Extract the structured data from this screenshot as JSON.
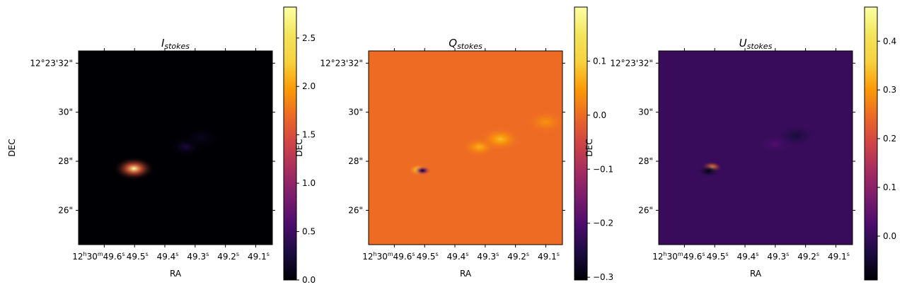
{
  "chart_data": [
    {
      "type": "heatmap",
      "title_main": "I",
      "title_sub": "stokes",
      "xlabel": "RA",
      "ylabel": "DEC",
      "x_ticks": [
        {
          "prefix": "12",
          "h": "h",
          "mid": "30",
          "m": "m",
          "tail": "49.6",
          "s": "s",
          "ra": 49.6
        },
        {
          "tail": "49.5",
          "s": "s",
          "ra": 49.5
        },
        {
          "tail": "49.4",
          "s": "s",
          "ra": 49.4
        },
        {
          "tail": "49.3",
          "s": "s",
          "ra": 49.3
        },
        {
          "tail": "49.2",
          "s": "s",
          "ra": 49.2
        },
        {
          "tail": "49.1",
          "s": "s",
          "ra": 49.1
        }
      ],
      "xlim": [
        49.685,
        49.045
      ],
      "y_ticks": [
        {
          "label": "12°23'32\"",
          "dec": 32
        },
        {
          "label": "30\"",
          "dec": 30
        },
        {
          "label": "28\"",
          "dec": 28
        },
        {
          "label": "26\"",
          "dec": 26
        }
      ],
      "ylim": [
        24.6,
        32.5
      ],
      "colormap": "inferno",
      "colorbar": {
        "range": [
          0.0,
          2.82
        ],
        "ticks": [
          {
            "label": "0.0",
            "value": 0.0
          },
          {
            "label": "0.5",
            "value": 0.5
          },
          {
            "label": "1.0",
            "value": 1.0
          },
          {
            "label": "1.5",
            "value": 1.5
          },
          {
            "label": "2.0",
            "value": 2.0
          },
          {
            "label": "2.5",
            "value": 2.5
          }
        ]
      },
      "background_value": 0.0,
      "features": [
        {
          "ra": 49.502,
          "dec": 27.7,
          "value": 2.8,
          "extent": 0.6
        },
        {
          "ra": 49.33,
          "dec": 28.6,
          "value": 0.25,
          "extent": 0.5
        },
        {
          "ra": 49.28,
          "dec": 28.95,
          "value": 0.12,
          "extent": 0.6
        }
      ]
    },
    {
      "type": "heatmap",
      "title_main": "Q",
      "title_sub": "stokes",
      "xlabel": "RA",
      "ylabel": "DEC",
      "x_ticks": [
        {
          "prefix": "12",
          "h": "h",
          "mid": "30",
          "m": "m",
          "tail": "49.6",
          "s": "s",
          "ra": 49.6
        },
        {
          "tail": "49.5",
          "s": "s",
          "ra": 49.5
        },
        {
          "tail": "49.4",
          "s": "s",
          "ra": 49.4
        },
        {
          "tail": "49.3",
          "s": "s",
          "ra": 49.3
        },
        {
          "tail": "49.2",
          "s": "s",
          "ra": 49.2
        },
        {
          "tail": "49.1",
          "s": "s",
          "ra": 49.1
        }
      ],
      "xlim": [
        49.685,
        49.045
      ],
      "y_ticks": [
        {
          "label": "12°23'32\"",
          "dec": 32
        },
        {
          "label": "30\"",
          "dec": 30
        },
        {
          "label": "28\"",
          "dec": 28
        },
        {
          "label": "26\"",
          "dec": 26
        }
      ],
      "ylim": [
        24.6,
        32.5
      ],
      "colormap": "inferno",
      "colorbar": {
        "range": [
          -0.305,
          0.2
        ],
        "ticks": [
          {
            "label": "−0.3",
            "value": -0.3
          },
          {
            "label": "−0.2",
            "value": -0.2
          },
          {
            "label": "−0.1",
            "value": -0.1
          },
          {
            "label": "0.0",
            "value": 0.0
          },
          {
            "label": "0.1",
            "value": 0.1
          }
        ]
      },
      "background_value": 0.0,
      "features": [
        {
          "ra": 49.52,
          "dec": 27.65,
          "value": 0.15,
          "extent": 0.3
        },
        {
          "ra": 49.507,
          "dec": 27.62,
          "value": -0.3,
          "extent": 0.25
        },
        {
          "ra": 49.32,
          "dec": 28.58,
          "value": 0.07,
          "extent": 0.5
        },
        {
          "ra": 49.25,
          "dec": 28.9,
          "value": 0.08,
          "extent": 0.6
        },
        {
          "ra": 49.1,
          "dec": 29.6,
          "value": 0.04,
          "extent": 0.6
        }
      ]
    },
    {
      "type": "heatmap",
      "title_main": "U",
      "title_sub": "stokes",
      "xlabel": "RA",
      "ylabel": "DEC",
      "x_ticks": [
        {
          "prefix": "12",
          "h": "h",
          "mid": "30",
          "m": "m",
          "tail": "49.6",
          "s": "s",
          "ra": 49.6
        },
        {
          "tail": "49.5",
          "s": "s",
          "ra": 49.5
        },
        {
          "tail": "49.4",
          "s": "s",
          "ra": 49.4
        },
        {
          "tail": "49.3",
          "s": "s",
          "ra": 49.3
        },
        {
          "tail": "49.2",
          "s": "s",
          "ra": 49.2
        },
        {
          "tail": "49.1",
          "s": "s",
          "ra": 49.1
        }
      ],
      "xlim": [
        49.685,
        49.045
      ],
      "y_ticks": [
        {
          "label": "12°23'32\"",
          "dec": 32
        },
        {
          "label": "30\"",
          "dec": 30
        },
        {
          "label": "28\"",
          "dec": 28
        },
        {
          "label": "26\"",
          "dec": 26
        }
      ],
      "ylim": [
        24.6,
        32.5
      ],
      "colormap": "inferno",
      "colorbar": {
        "range": [
          -0.09,
          0.47
        ],
        "ticks": [
          {
            "label": "0.0",
            "value": 0.0
          },
          {
            "label": "0.1",
            "value": 0.1
          },
          {
            "label": "0.2",
            "value": 0.2
          },
          {
            "label": "0.3",
            "value": 0.3
          },
          {
            "label": "0.4",
            "value": 0.4
          }
        ]
      },
      "background_value": 0.0,
      "features": [
        {
          "ra": 49.51,
          "dec": 27.75,
          "value": 0.45,
          "extent": 0.3
        },
        {
          "ra": 49.52,
          "dec": 27.6,
          "value": -0.08,
          "extent": 0.35
        },
        {
          "ra": 49.3,
          "dec": 28.7,
          "value": 0.03,
          "extent": 0.5
        },
        {
          "ra": 49.23,
          "dec": 29.05,
          "value": -0.04,
          "extent": 0.6
        }
      ]
    }
  ]
}
